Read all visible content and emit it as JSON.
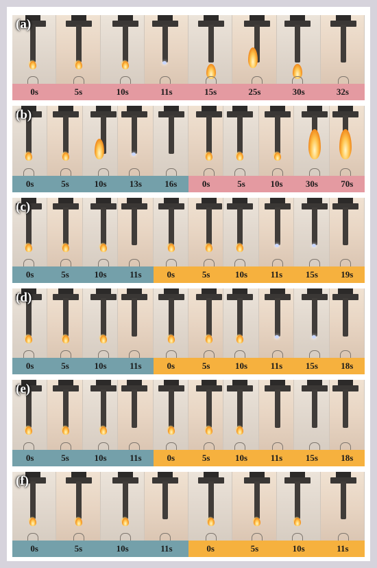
{
  "colors": {
    "pink": "#e49aa1",
    "teal": "#74a0aa",
    "orange": "#f6b13e",
    "page_border": "#d6d3dc"
  },
  "panels": [
    {
      "label": "(a)",
      "frames": [
        {
          "state": "ignite"
        },
        {
          "state": "small"
        },
        {
          "state": "small"
        },
        {
          "state": "ember"
        },
        {
          "state": "drip"
        },
        {
          "state": "side"
        },
        {
          "state": "drip"
        },
        {
          "state": "none"
        }
      ],
      "segments": [
        {
          "color": "pink",
          "times": [
            "0s",
            "5s",
            "10s",
            "11s",
            "15s",
            "25s",
            "30s",
            "32s"
          ]
        }
      ]
    },
    {
      "label": "(b)",
      "frames": [
        {
          "state": "small"
        },
        {
          "state": "small"
        },
        {
          "state": "side"
        },
        {
          "state": "ember"
        },
        {
          "state": "none"
        },
        {
          "state": "small"
        },
        {
          "state": "small"
        },
        {
          "state": "small"
        },
        {
          "state": "big"
        },
        {
          "state": "big"
        }
      ],
      "segments": [
        {
          "color": "teal",
          "times": [
            "0s",
            "5s",
            "10s",
            "13s",
            "16s"
          ]
        },
        {
          "color": "pink",
          "times": [
            "0s",
            "5s",
            "10s",
            "30s",
            "70s"
          ]
        }
      ]
    },
    {
      "label": "(c)",
      "frames": [
        {
          "state": "small"
        },
        {
          "state": "small"
        },
        {
          "state": "small"
        },
        {
          "state": "none"
        },
        {
          "state": "small"
        },
        {
          "state": "small"
        },
        {
          "state": "small"
        },
        {
          "state": "ember"
        },
        {
          "state": "ember"
        },
        {
          "state": "none"
        }
      ],
      "segments": [
        {
          "color": "teal",
          "times": [
            "0s",
            "5s",
            "10s",
            "11s"
          ]
        },
        {
          "color": "orange",
          "times": [
            "0s",
            "5s",
            "10s",
            "11s",
            "15s",
            "19s"
          ]
        }
      ]
    },
    {
      "label": "(d)",
      "frames": [
        {
          "state": "small"
        },
        {
          "state": "small"
        },
        {
          "state": "small"
        },
        {
          "state": "none"
        },
        {
          "state": "small"
        },
        {
          "state": "small"
        },
        {
          "state": "small"
        },
        {
          "state": "ember"
        },
        {
          "state": "ember"
        },
        {
          "state": "none"
        }
      ],
      "segments": [
        {
          "color": "teal",
          "times": [
            "0s",
            "5s",
            "10s",
            "11s"
          ]
        },
        {
          "color": "orange",
          "times": [
            "0s",
            "5s",
            "10s",
            "11s",
            "15s",
            "18s"
          ]
        }
      ]
    },
    {
      "label": "(e)",
      "frames": [
        {
          "state": "small"
        },
        {
          "state": "small"
        },
        {
          "state": "small"
        },
        {
          "state": "none"
        },
        {
          "state": "small"
        },
        {
          "state": "small"
        },
        {
          "state": "small"
        },
        {
          "state": "none"
        },
        {
          "state": "none"
        },
        {
          "state": "none"
        }
      ],
      "segments": [
        {
          "color": "teal",
          "times": [
            "0s",
            "5s",
            "10s",
            "11s"
          ]
        },
        {
          "color": "orange",
          "times": [
            "0s",
            "5s",
            "10s",
            "11s",
            "15s",
            "18s"
          ]
        }
      ]
    },
    {
      "label": "(f)",
      "frames": [
        {
          "state": "small"
        },
        {
          "state": "small"
        },
        {
          "state": "small"
        },
        {
          "state": "none"
        },
        {
          "state": "small"
        },
        {
          "state": "small"
        },
        {
          "state": "small"
        },
        {
          "state": "none"
        }
      ],
      "segments": [
        {
          "color": "teal",
          "times": [
            "0s",
            "5s",
            "10s",
            "11s"
          ]
        },
        {
          "color": "orange",
          "times": [
            "0s",
            "5s",
            "10s",
            "11s"
          ]
        }
      ]
    }
  ]
}
